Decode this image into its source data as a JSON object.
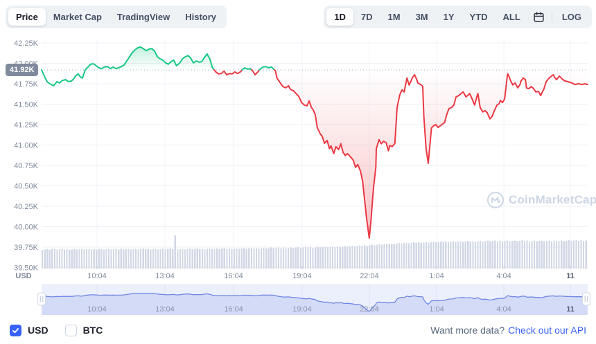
{
  "toolbar": {
    "left_tabs": [
      {
        "label": "Price",
        "selected": true
      },
      {
        "label": "Market Cap",
        "selected": false
      },
      {
        "label": "TradingView",
        "selected": false
      },
      {
        "label": "History",
        "selected": false
      }
    ],
    "range_tabs": [
      {
        "label": "1D",
        "selected": true
      },
      {
        "label": "7D",
        "selected": false
      },
      {
        "label": "1M",
        "selected": false
      },
      {
        "label": "3M",
        "selected": false
      },
      {
        "label": "1Y",
        "selected": false
      },
      {
        "label": "YTD",
        "selected": false
      },
      {
        "label": "ALL",
        "selected": false
      }
    ],
    "calendar_icon": "calendar-icon",
    "log_label": "LOG"
  },
  "watermark": {
    "text": "CoinMarketCap",
    "logo_icon": "coinmarketcap-logo-icon",
    "color": "#ced5e5"
  },
  "chart_data": {
    "type": "line",
    "baseline_price": 41920,
    "current_price_label": "41.92K",
    "colors": {
      "up": "#16c784",
      "down": "#ea3943",
      "baseline_badge": "#808a9d",
      "volume_bar": "#d2d7e5",
      "nav_line": "#6f88e2",
      "nav_fill": "#d4dbf7",
      "nav_bg": "#eceffc"
    },
    "y_axis": {
      "unit": "USD",
      "ticks": [
        {
          "label": "42.25K",
          "value": 42250
        },
        {
          "label": "42.00K",
          "value": 42000
        },
        {
          "label": "41.75K",
          "value": 41750
        },
        {
          "label": "41.50K",
          "value": 41500
        },
        {
          "label": "41.25K",
          "value": 41250
        },
        {
          "label": "41.00K",
          "value": 41000
        },
        {
          "label": "40.75K",
          "value": 40750
        },
        {
          "label": "40.50K",
          "value": 40500
        },
        {
          "label": "40.25K",
          "value": 40250
        },
        {
          "label": "40.00K",
          "value": 40000
        },
        {
          "label": "39.75K",
          "value": 39750
        },
        {
          "label": "39.50K",
          "value": 39500
        }
      ]
    },
    "x_axis": {
      "ticks": [
        {
          "label": "10:04",
          "t": 0.1015,
          "bold": false
        },
        {
          "label": "13:04",
          "t": 0.2259,
          "bold": false
        },
        {
          "label": "16:04",
          "t": 0.3515,
          "bold": false
        },
        {
          "label": "19:04",
          "t": 0.4772,
          "bold": false
        },
        {
          "label": "22:04",
          "t": 0.6002,
          "bold": false
        },
        {
          "label": "1:04",
          "t": 0.7234,
          "bold": false
        },
        {
          "label": "4:04",
          "t": 0.8465,
          "bold": false
        },
        {
          "label": "11",
          "t": 0.9683,
          "bold": true
        }
      ]
    },
    "series": [
      {
        "name": "price",
        "points": [
          [
            0.0,
            41920
          ],
          [
            0.005,
            41845
          ],
          [
            0.01,
            41775
          ],
          [
            0.015,
            41750
          ],
          [
            0.022,
            41725
          ],
          [
            0.028,
            41775
          ],
          [
            0.033,
            41760
          ],
          [
            0.038,
            41790
          ],
          [
            0.044,
            41800
          ],
          [
            0.049,
            41775
          ],
          [
            0.055,
            41785
          ],
          [
            0.06,
            41820
          ],
          [
            0.063,
            41850
          ],
          [
            0.067,
            41870
          ],
          [
            0.071,
            41835
          ],
          [
            0.075,
            41820
          ],
          [
            0.08,
            41920
          ],
          [
            0.085,
            41955
          ],
          [
            0.09,
            41990
          ],
          [
            0.095,
            41995
          ],
          [
            0.1,
            41970
          ],
          [
            0.105,
            41945
          ],
          [
            0.11,
            41935
          ],
          [
            0.115,
            41955
          ],
          [
            0.121,
            41960
          ],
          [
            0.126,
            41935
          ],
          [
            0.131,
            41955
          ],
          [
            0.136,
            41935
          ],
          [
            0.141,
            41945
          ],
          [
            0.146,
            41960
          ],
          [
            0.151,
            41980
          ],
          [
            0.156,
            42030
          ],
          [
            0.161,
            42080
          ],
          [
            0.166,
            42130
          ],
          [
            0.171,
            42165
          ],
          [
            0.176,
            42190
          ],
          [
            0.181,
            42200
          ],
          [
            0.187,
            42175
          ],
          [
            0.192,
            42155
          ],
          [
            0.197,
            42175
          ],
          [
            0.202,
            42180
          ],
          [
            0.207,
            42150
          ],
          [
            0.212,
            42080
          ],
          [
            0.217,
            42055
          ],
          [
            0.222,
            42040
          ],
          [
            0.227,
            42005
          ],
          [
            0.232,
            41990
          ],
          [
            0.237,
            42020
          ],
          [
            0.242,
            42040
          ],
          [
            0.247,
            41970
          ],
          [
            0.253,
            42005
          ],
          [
            0.258,
            42055
          ],
          [
            0.263,
            42080
          ],
          [
            0.268,
            42095
          ],
          [
            0.273,
            42065
          ],
          [
            0.278,
            42005
          ],
          [
            0.283,
            42030
          ],
          [
            0.288,
            42015
          ],
          [
            0.293,
            42020
          ],
          [
            0.298,
            42070
          ],
          [
            0.303,
            42115
          ],
          [
            0.308,
            42055
          ],
          [
            0.313,
            41945
          ],
          [
            0.319,
            41895
          ],
          [
            0.324,
            41870
          ],
          [
            0.329,
            41875
          ],
          [
            0.334,
            41905
          ],
          [
            0.339,
            41860
          ],
          [
            0.344,
            41875
          ],
          [
            0.349,
            41870
          ],
          [
            0.354,
            41895
          ],
          [
            0.359,
            41875
          ],
          [
            0.364,
            41895
          ],
          [
            0.369,
            41930
          ],
          [
            0.372,
            41945
          ],
          [
            0.377,
            41930
          ],
          [
            0.382,
            41935
          ],
          [
            0.387,
            41905
          ],
          [
            0.391,
            41860
          ],
          [
            0.396,
            41895
          ],
          [
            0.401,
            41935
          ],
          [
            0.406,
            41955
          ],
          [
            0.411,
            41960
          ],
          [
            0.416,
            41945
          ],
          [
            0.421,
            41955
          ],
          [
            0.425,
            41930
          ],
          [
            0.428,
            41910
          ],
          [
            0.431,
            41820
          ],
          [
            0.437,
            41760
          ],
          [
            0.442,
            41715
          ],
          [
            0.447,
            41700
          ],
          [
            0.452,
            41725
          ],
          [
            0.456,
            41680
          ],
          [
            0.461,
            41665
          ],
          [
            0.466,
            41630
          ],
          [
            0.471,
            41595
          ],
          [
            0.476,
            41520
          ],
          [
            0.481,
            41490
          ],
          [
            0.486,
            41480
          ],
          [
            0.49,
            41540
          ],
          [
            0.494,
            41460
          ],
          [
            0.497,
            41435
          ],
          [
            0.501,
            41375
          ],
          [
            0.505,
            41210
          ],
          [
            0.51,
            41140
          ],
          [
            0.514,
            41105
          ],
          [
            0.518,
            41020
          ],
          [
            0.523,
            41055
          ],
          [
            0.527,
            40955
          ],
          [
            0.53,
            40990
          ],
          [
            0.535,
            40895
          ],
          [
            0.539,
            40980
          ],
          [
            0.544,
            40945
          ],
          [
            0.548,
            41015
          ],
          [
            0.552,
            40910
          ],
          [
            0.556,
            40870
          ],
          [
            0.56,
            40895
          ],
          [
            0.563,
            40875
          ],
          [
            0.567,
            40845
          ],
          [
            0.571,
            40810
          ],
          [
            0.575,
            40725
          ],
          [
            0.579,
            40760
          ],
          [
            0.584,
            40680
          ],
          [
            0.588,
            40555
          ],
          [
            0.591,
            40360
          ],
          [
            0.595,
            40105
          ],
          [
            0.598,
            39960
          ],
          [
            0.6,
            39860
          ],
          [
            0.603,
            40065
          ],
          [
            0.605,
            40235
          ],
          [
            0.608,
            40490
          ],
          [
            0.612,
            40725
          ],
          [
            0.613,
            40955
          ],
          [
            0.618,
            41065
          ],
          [
            0.622,
            41015
          ],
          [
            0.626,
            41045
          ],
          [
            0.631,
            41030
          ],
          [
            0.635,
            40930
          ],
          [
            0.638,
            40995
          ],
          [
            0.642,
            40980
          ],
          [
            0.647,
            41020
          ],
          [
            0.651,
            41460
          ],
          [
            0.656,
            41615
          ],
          [
            0.66,
            41675
          ],
          [
            0.664,
            41650
          ],
          [
            0.669,
            41820
          ],
          [
            0.673,
            41735
          ],
          [
            0.676,
            41775
          ],
          [
            0.679,
            41825
          ],
          [
            0.683,
            41860
          ],
          [
            0.687,
            41800
          ],
          [
            0.689,
            41760
          ],
          [
            0.694,
            41740
          ],
          [
            0.698,
            41715
          ],
          [
            0.7,
            41350
          ],
          [
            0.704,
            40955
          ],
          [
            0.708,
            40775
          ],
          [
            0.711,
            40995
          ],
          [
            0.714,
            41210
          ],
          [
            0.718,
            41235
          ],
          [
            0.722,
            41250
          ],
          [
            0.726,
            41215
          ],
          [
            0.73,
            41235
          ],
          [
            0.733,
            41250
          ],
          [
            0.738,
            41275
          ],
          [
            0.742,
            41375
          ],
          [
            0.746,
            41445
          ],
          [
            0.751,
            41460
          ],
          [
            0.755,
            41490
          ],
          [
            0.759,
            41590
          ],
          [
            0.764,
            41605
          ],
          [
            0.768,
            41630
          ],
          [
            0.772,
            41650
          ],
          [
            0.777,
            41590
          ],
          [
            0.78,
            41605
          ],
          [
            0.784,
            41630
          ],
          [
            0.788,
            41570
          ],
          [
            0.793,
            41490
          ],
          [
            0.797,
            41590
          ],
          [
            0.799,
            41630
          ],
          [
            0.803,
            41460
          ],
          [
            0.808,
            41405
          ],
          [
            0.812,
            41420
          ],
          [
            0.816,
            41395
          ],
          [
            0.821,
            41320
          ],
          [
            0.825,
            41350
          ],
          [
            0.829,
            41420
          ],
          [
            0.834,
            41490
          ],
          [
            0.838,
            41505
          ],
          [
            0.84,
            41545
          ],
          [
            0.844,
            41520
          ],
          [
            0.848,
            41565
          ],
          [
            0.853,
            41860
          ],
          [
            0.854,
            41870
          ],
          [
            0.859,
            41785
          ],
          [
            0.863,
            41735
          ],
          [
            0.867,
            41760
          ],
          [
            0.872,
            41700
          ],
          [
            0.876,
            41740
          ],
          [
            0.878,
            41785
          ],
          [
            0.882,
            41820
          ],
          [
            0.886,
            41800
          ],
          [
            0.888,
            41700
          ],
          [
            0.892,
            41690
          ],
          [
            0.897,
            41715
          ],
          [
            0.901,
            41690
          ],
          [
            0.905,
            41650
          ],
          [
            0.91,
            41655
          ],
          [
            0.914,
            41605
          ],
          [
            0.92,
            41690
          ],
          [
            0.924,
            41775
          ],
          [
            0.93,
            41825
          ],
          [
            0.937,
            41860
          ],
          [
            0.94,
            41825
          ],
          [
            0.943,
            41800
          ],
          [
            0.948,
            41845
          ],
          [
            0.953,
            41810
          ],
          [
            0.958,
            41785
          ],
          [
            0.964,
            41775
          ],
          [
            0.971,
            41760
          ],
          [
            0.977,
            41740
          ],
          [
            0.983,
            41750
          ],
          [
            0.99,
            41740
          ],
          [
            0.995,
            41750
          ],
          [
            1.0,
            41740
          ]
        ]
      }
    ],
    "volume_profile": [
      [
        0,
        0.58
      ],
      [
        0.25,
        0.59
      ],
      [
        0.35,
        0.6
      ],
      [
        0.45,
        0.63
      ],
      [
        0.52,
        0.65
      ],
      [
        0.58,
        0.68
      ],
      [
        0.62,
        0.73
      ],
      [
        0.66,
        0.77
      ],
      [
        0.72,
        0.8
      ],
      [
        0.78,
        0.82
      ],
      [
        0.85,
        0.84
      ],
      [
        0.92,
        0.83
      ],
      [
        1,
        0.85
      ]
    ],
    "volume_spike": {
      "t": 0.244,
      "h": 1.0
    }
  },
  "navigator": {
    "note": "mini range selector showing same series",
    "handle_icon": "drag-handle-icon"
  },
  "footer": {
    "toggles": [
      {
        "label": "USD",
        "checked": true
      },
      {
        "label": "BTC",
        "checked": false
      }
    ],
    "promo_text": "Want more data?",
    "promo_link": "Check out our API"
  }
}
